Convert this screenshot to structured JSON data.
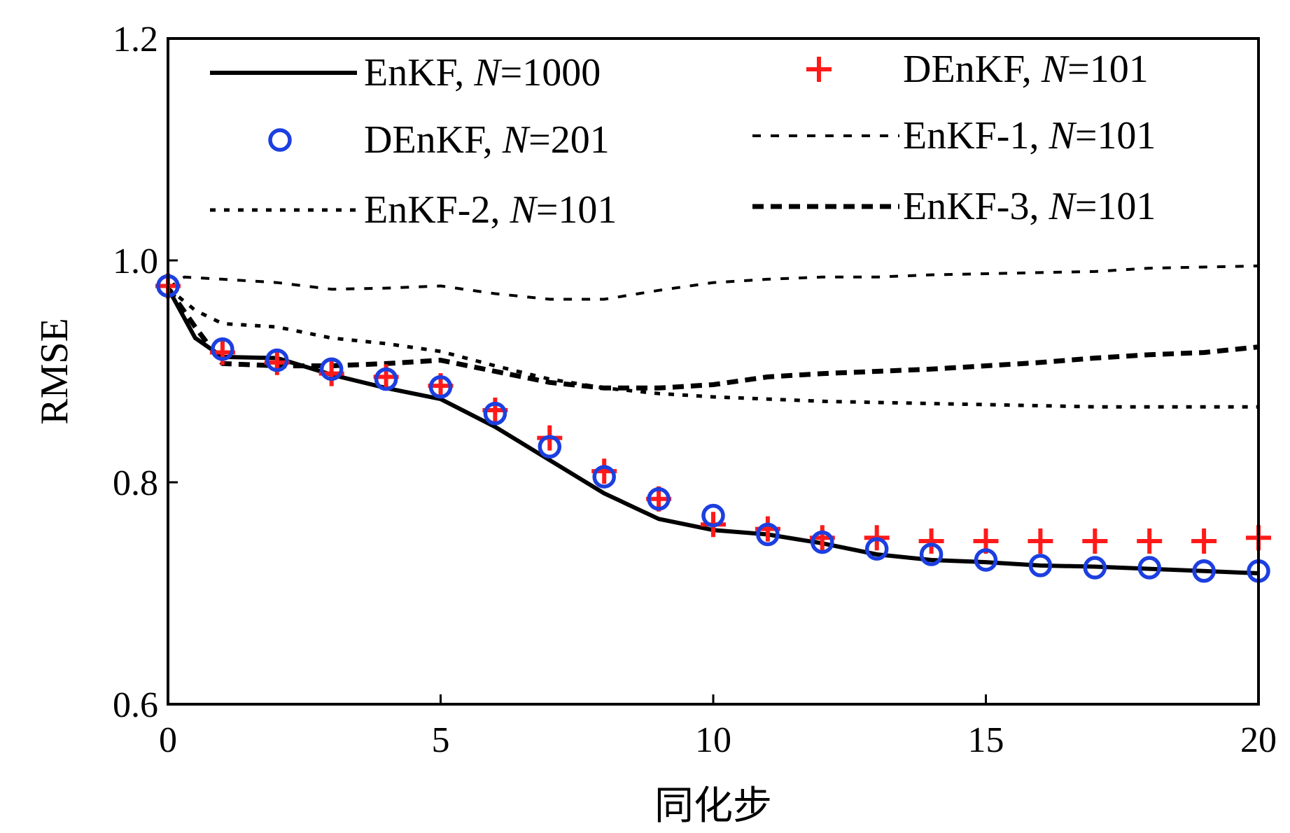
{
  "chart_data": {
    "type": "line",
    "title": "",
    "xlabel": "同化步",
    "ylabel": "RMSE",
    "xlim": [
      0,
      20
    ],
    "ylim": [
      0.6,
      1.2
    ],
    "xticks": [
      "0",
      "5",
      "10",
      "15",
      "20"
    ],
    "yticks": [
      "0.6",
      "0.8",
      "1.0",
      "1.2"
    ],
    "grid": false,
    "legend_position": "top",
    "series": [
      {
        "name": "EnKF, N=1000",
        "name_prefix": "EnKF, ",
        "name_var": "N",
        "name_suffix": "=1000",
        "style": "solid",
        "color": "#000000",
        "x": [
          0,
          0.5,
          1,
          2,
          3,
          4,
          5,
          6,
          7,
          8,
          9,
          10,
          11,
          12,
          13,
          14,
          15,
          16,
          17,
          18,
          19,
          20
        ],
        "y": [
          0.975,
          0.93,
          0.913,
          0.912,
          0.897,
          0.885,
          0.875,
          0.85,
          0.82,
          0.79,
          0.767,
          0.757,
          0.753,
          0.745,
          0.735,
          0.73,
          0.728,
          0.725,
          0.724,
          0.722,
          0.72,
          0.718
        ]
      },
      {
        "name": "DEnKF, N=101",
        "name_prefix": "DEnKF, ",
        "name_var": "N",
        "name_suffix": "=101",
        "style": "marker-plus",
        "color": "#ff1a1a",
        "x": [
          0,
          1,
          2,
          3,
          4,
          5,
          6,
          7,
          8,
          9,
          10,
          11,
          12,
          13,
          14,
          15,
          16,
          17,
          18,
          19,
          20
        ],
        "y": [
          0.977,
          0.917,
          0.908,
          0.898,
          0.895,
          0.887,
          0.865,
          0.84,
          0.81,
          0.785,
          0.762,
          0.758,
          0.75,
          0.75,
          0.747,
          0.747,
          0.747,
          0.747,
          0.747,
          0.747,
          0.75
        ]
      },
      {
        "name": "DEnKF, N=201",
        "name_prefix": "DEnKF, ",
        "name_var": "N",
        "name_suffix": "=201",
        "style": "marker-circle",
        "color": "#1c3fe0",
        "x": [
          0,
          1,
          2,
          3,
          4,
          5,
          6,
          7,
          8,
          9,
          10,
          11,
          12,
          13,
          14,
          15,
          16,
          17,
          18,
          19,
          20
        ],
        "y": [
          0.977,
          0.92,
          0.91,
          0.902,
          0.893,
          0.886,
          0.862,
          0.832,
          0.805,
          0.785,
          0.77,
          0.753,
          0.746,
          0.74,
          0.735,
          0.73,
          0.725,
          0.723,
          0.723,
          0.72,
          0.72
        ]
      },
      {
        "name": "EnKF-1, N=101",
        "name_prefix": "EnKF-1, ",
        "name_var": "N",
        "name_suffix": "=101",
        "style": "dash-fine",
        "color": "#000000",
        "x": [
          0,
          0.3,
          1,
          2,
          3,
          4,
          5,
          6,
          7,
          8,
          9,
          10,
          11,
          12,
          13,
          14,
          15,
          16,
          17,
          18,
          19,
          20
        ],
        "y": [
          0.975,
          0.985,
          0.983,
          0.98,
          0.974,
          0.975,
          0.977,
          0.97,
          0.965,
          0.965,
          0.973,
          0.98,
          0.983,
          0.985,
          0.985,
          0.987,
          0.988,
          0.989,
          0.99,
          0.993,
          0.994,
          0.995
        ]
      },
      {
        "name": "EnKF-2, N=101",
        "name_prefix": "EnKF-2, ",
        "name_var": "N",
        "name_suffix": "=101",
        "style": "dash-medium",
        "color": "#000000",
        "x": [
          0,
          0.5,
          1,
          2,
          3,
          4,
          5,
          6,
          7,
          8,
          9,
          10,
          11,
          12,
          13,
          14,
          15,
          16,
          17,
          18,
          19,
          20
        ],
        "y": [
          0.975,
          0.955,
          0.943,
          0.94,
          0.93,
          0.925,
          0.918,
          0.905,
          0.893,
          0.885,
          0.88,
          0.877,
          0.875,
          0.873,
          0.872,
          0.871,
          0.87,
          0.869,
          0.868,
          0.868,
          0.868,
          0.868
        ]
      },
      {
        "name": "EnKF-3, N=101",
        "name_prefix": "EnKF-3, ",
        "name_var": "N",
        "name_suffix": "=101",
        "style": "dash-heavy",
        "color": "#000000",
        "x": [
          0,
          0.5,
          1,
          2,
          3,
          4,
          5,
          6,
          7,
          8,
          9,
          10,
          11,
          12,
          13,
          14,
          15,
          16,
          17,
          18,
          19,
          20
        ],
        "y": [
          0.975,
          0.94,
          0.907,
          0.905,
          0.905,
          0.907,
          0.91,
          0.9,
          0.89,
          0.885,
          0.885,
          0.888,
          0.895,
          0.898,
          0.9,
          0.902,
          0.905,
          0.908,
          0.912,
          0.915,
          0.917,
          0.922
        ]
      }
    ]
  }
}
